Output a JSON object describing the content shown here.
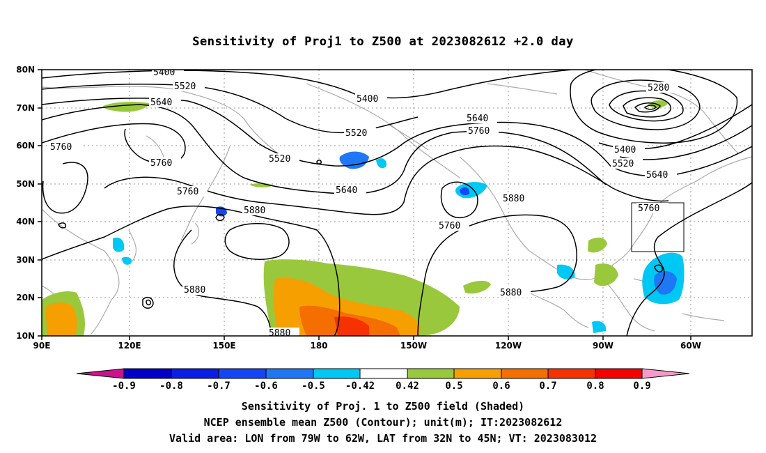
{
  "title": "Sensitivity of Proj1 to Z500 at 2023082612 +2.0 day",
  "lat_labels": [
    "80N",
    "70N",
    "60N",
    "50N",
    "40N",
    "30N",
    "20N",
    "10N"
  ],
  "lon_labels": [
    "90E",
    "120E",
    "150E",
    "180",
    "150W",
    "120W",
    "90W",
    "60W"
  ],
  "contour_labels": [
    "5400",
    "5520",
    "5640",
    "5400",
    "5520",
    "5640",
    "5760",
    "5760",
    "5520",
    "5760",
    "5640",
    "5880",
    "5760",
    "5880",
    "5880",
    "5280",
    "5400",
    "5520",
    "5640",
    "5760",
    "5880",
    "5880"
  ],
  "colorbar": {
    "labels": [
      "-0.9",
      "-0.8",
      "-0.7",
      "-0.6",
      "-0.5",
      "-0.42",
      "0.42",
      "0.5",
      "0.6",
      "0.7",
      "0.8",
      "0.9"
    ],
    "colors": [
      "#c8148c",
      "#0000c8",
      "#0a1ee6",
      "#1446f5",
      "#1e78f5",
      "#00c8f5",
      "#ffffff",
      "#9ac83c",
      "#f5a000",
      "#f56e00",
      "#f53200",
      "#f50000",
      "#f59ac8"
    ]
  },
  "captions": [
    "Sensitivity of Proj. 1 to Z500 field (Shaded)",
    "NCEP ensemble mean Z500 (Contour); unit(m); IT:2023082612",
    "Valid area: LON from 79W to 62W, LAT from 32N to 45N; VT: 2023083012"
  ]
}
